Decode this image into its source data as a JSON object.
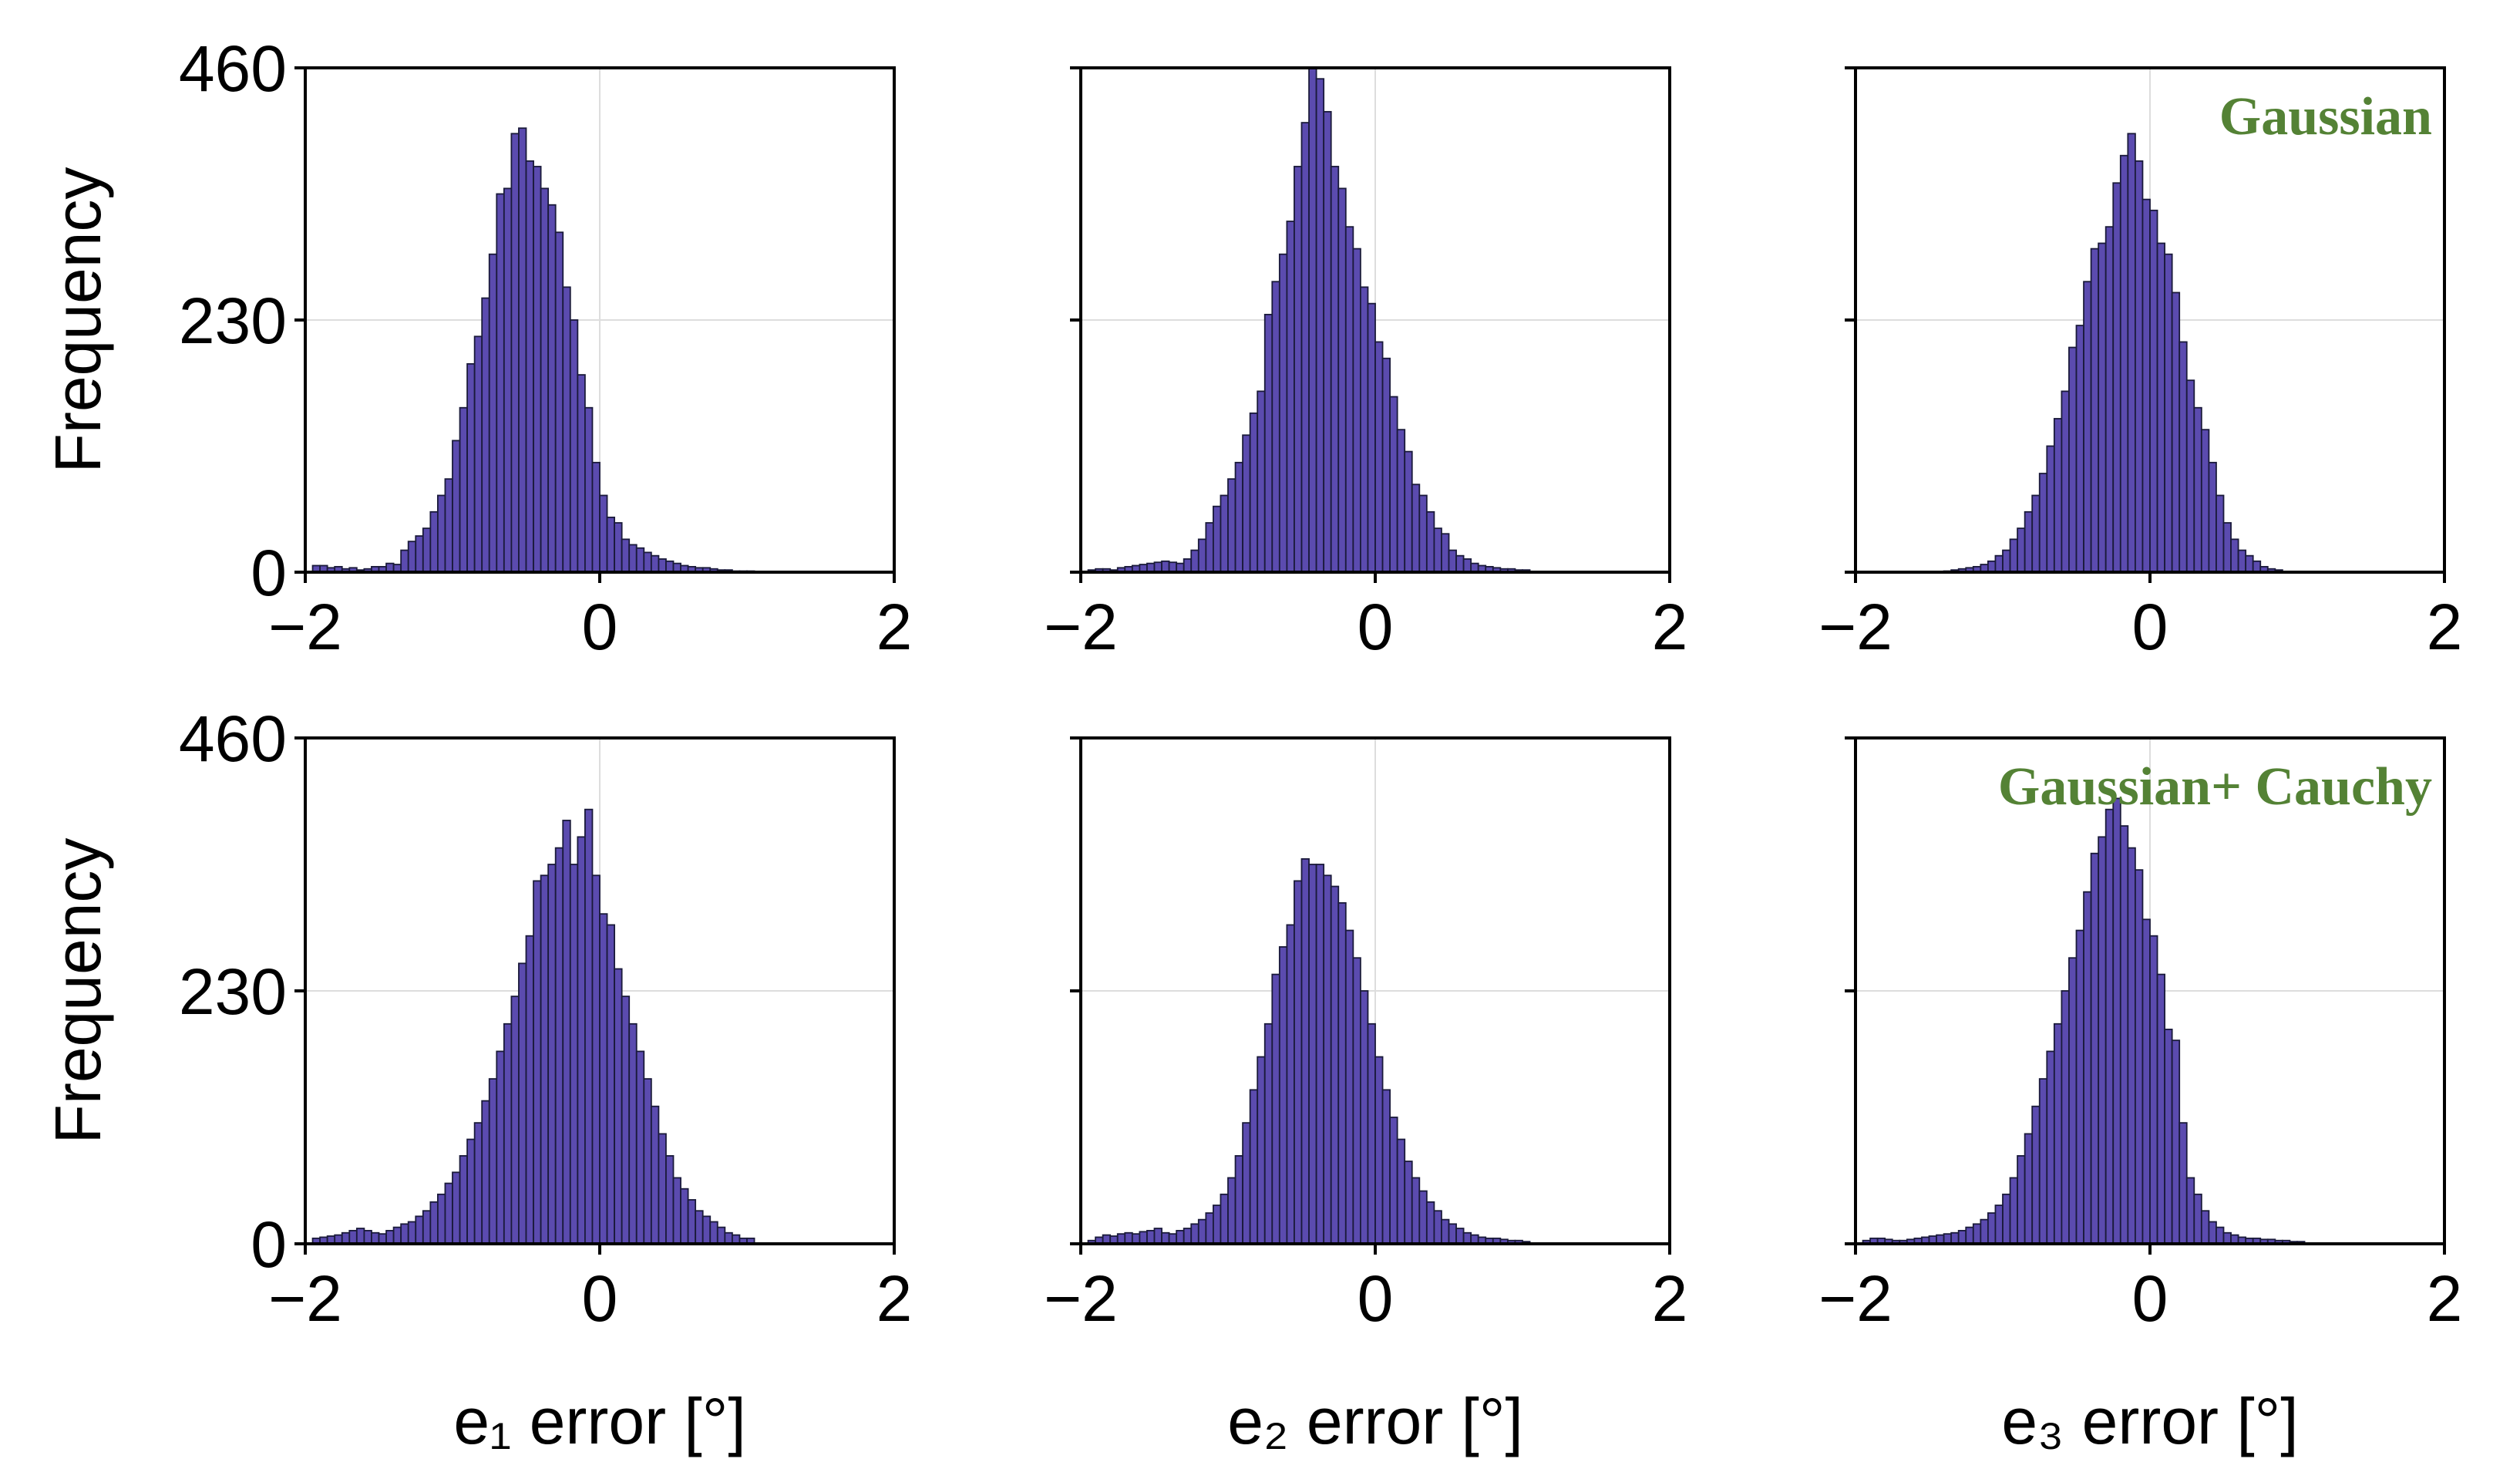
{
  "chart_data": {
    "type": "bar",
    "layout": "2x3 grid of histograms",
    "bar_color": "#5b4baf",
    "bar_edge_color": "#1a1a3a",
    "annotation_color": "#548235",
    "grid": true,
    "bin_start": -1.95,
    "bin_width": 0.05,
    "ylabel": "Frequency",
    "xlim": [
      -2,
      2
    ],
    "ylim": [
      0,
      460
    ],
    "xticks": [
      "−2",
      "0",
      "2"
    ],
    "yticks": [
      "0",
      "230",
      "460"
    ],
    "panels": [
      {
        "row": 0,
        "col": 0,
        "xlabel": "",
        "annotation": "",
        "values": [
          6,
          6,
          4,
          5,
          3,
          4,
          2,
          3,
          5,
          5,
          8,
          7,
          20,
          28,
          33,
          40,
          55,
          70,
          85,
          120,
          150,
          190,
          215,
          250,
          290,
          345,
          350,
          400,
          405,
          375,
          370,
          350,
          335,
          310,
          260,
          230,
          180,
          150,
          100,
          70,
          50,
          45,
          30,
          25,
          22,
          18,
          15,
          12,
          10,
          8,
          6,
          5,
          4,
          4,
          3,
          2,
          2,
          1,
          1,
          1
        ]
      },
      {
        "row": 0,
        "col": 1,
        "xlabel": "",
        "annotation": "",
        "values": [
          2,
          3,
          3,
          2,
          4,
          5,
          6,
          7,
          8,
          9,
          10,
          9,
          8,
          12,
          20,
          30,
          45,
          60,
          70,
          85,
          100,
          125,
          145,
          165,
          235,
          265,
          290,
          320,
          370,
          410,
          460,
          450,
          420,
          370,
          350,
          315,
          295,
          260,
          245,
          210,
          195,
          160,
          130,
          110,
          80,
          70,
          55,
          40,
          35,
          20,
          15,
          12,
          8,
          6,
          5,
          4,
          3,
          3,
          2,
          2
        ]
      },
      {
        "row": 0,
        "col": 2,
        "xlabel": "",
        "annotation": "Gaussian",
        "values": [
          0,
          0,
          0,
          0,
          0,
          0,
          0,
          0,
          0,
          0,
          0,
          1,
          2,
          3,
          4,
          5,
          7,
          10,
          15,
          20,
          30,
          40,
          55,
          70,
          90,
          115,
          140,
          165,
          205,
          225,
          265,
          295,
          300,
          315,
          355,
          380,
          400,
          375,
          340,
          330,
          300,
          290,
          255,
          210,
          175,
          150,
          130,
          100,
          70,
          45,
          30,
          20,
          15,
          10,
          5,
          3,
          2,
          0,
          0,
          0
        ]
      },
      {
        "row": 1,
        "col": 0,
        "xlabel": "e₁ error [°]",
        "annotation": "",
        "values": [
          5,
          6,
          7,
          8,
          10,
          12,
          14,
          12,
          10,
          9,
          12,
          15,
          18,
          20,
          25,
          30,
          38,
          45,
          55,
          65,
          80,
          95,
          110,
          130,
          150,
          175,
          200,
          225,
          255,
          280,
          330,
          335,
          345,
          360,
          385,
          345,
          370,
          395,
          335,
          300,
          290,
          250,
          225,
          200,
          175,
          150,
          125,
          100,
          80,
          60,
          50,
          40,
          30,
          25,
          20,
          15,
          10,
          8,
          5,
          5
        ]
      },
      {
        "row": 1,
        "col": 1,
        "xlabel": "e₂ error [°]",
        "annotation": "",
        "values": [
          3,
          6,
          8,
          7,
          9,
          10,
          9,
          11,
          12,
          14,
          10,
          9,
          12,
          14,
          18,
          22,
          28,
          35,
          45,
          60,
          80,
          110,
          140,
          170,
          200,
          245,
          270,
          290,
          330,
          350,
          345,
          345,
          335,
          325,
          310,
          285,
          260,
          230,
          200,
          170,
          140,
          115,
          95,
          75,
          60,
          48,
          38,
          30,
          22,
          18,
          14,
          10,
          8,
          6,
          5,
          5,
          4,
          3,
          3,
          2
        ]
      },
      {
        "row": 1,
        "col": 2,
        "xlabel": "e₃ error [°]",
        "annotation": "Gaussian+ Cauchy",
        "values": [
          3,
          5,
          5,
          4,
          3,
          3,
          4,
          5,
          6,
          7,
          8,
          9,
          10,
          12,
          15,
          18,
          22,
          28,
          35,
          45,
          60,
          80,
          100,
          125,
          150,
          175,
          200,
          230,
          260,
          285,
          320,
          355,
          370,
          395,
          405,
          380,
          360,
          340,
          295,
          280,
          245,
          195,
          185,
          110,
          60,
          45,
          30,
          20,
          15,
          10,
          8,
          6,
          5,
          5,
          4,
          4,
          3,
          3,
          2,
          2
        ]
      }
    ]
  }
}
